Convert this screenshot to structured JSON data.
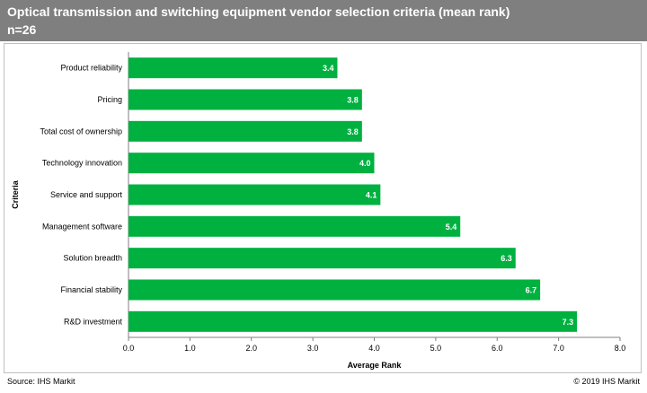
{
  "header": {
    "title": "Optical transmission and switching equipment vendor selection criteria (mean rank)",
    "subtitle": "n=26"
  },
  "chart_data": {
    "type": "bar",
    "orientation": "horizontal",
    "categories": [
      "Product reliability",
      "Pricing",
      "Total cost of ownership",
      "Technology innovation",
      "Service and support",
      "Management software",
      "Solution breadth",
      "Financial stability",
      "R&D investment"
    ],
    "values": [
      3.4,
      3.8,
      3.8,
      4.0,
      4.1,
      5.4,
      6.3,
      6.7,
      7.3
    ],
    "data_labels": [
      "3.4",
      "3.8",
      "3.8",
      "4.0",
      "4.1",
      "5.4",
      "6.3",
      "6.7",
      "7.3"
    ],
    "xlabel": "Average Rank",
    "ylabel": "Criteria",
    "xlim": [
      0,
      8
    ],
    "xticks": [
      "0.0",
      "1.0",
      "2.0",
      "3.0",
      "4.0",
      "5.0",
      "6.0",
      "7.0",
      "8.0"
    ],
    "bar_color": "#00b140",
    "grid": false,
    "legend": "none"
  },
  "footer": {
    "source": "Source: IHS Markit",
    "copyright": "© 2019 IHS Markit"
  }
}
